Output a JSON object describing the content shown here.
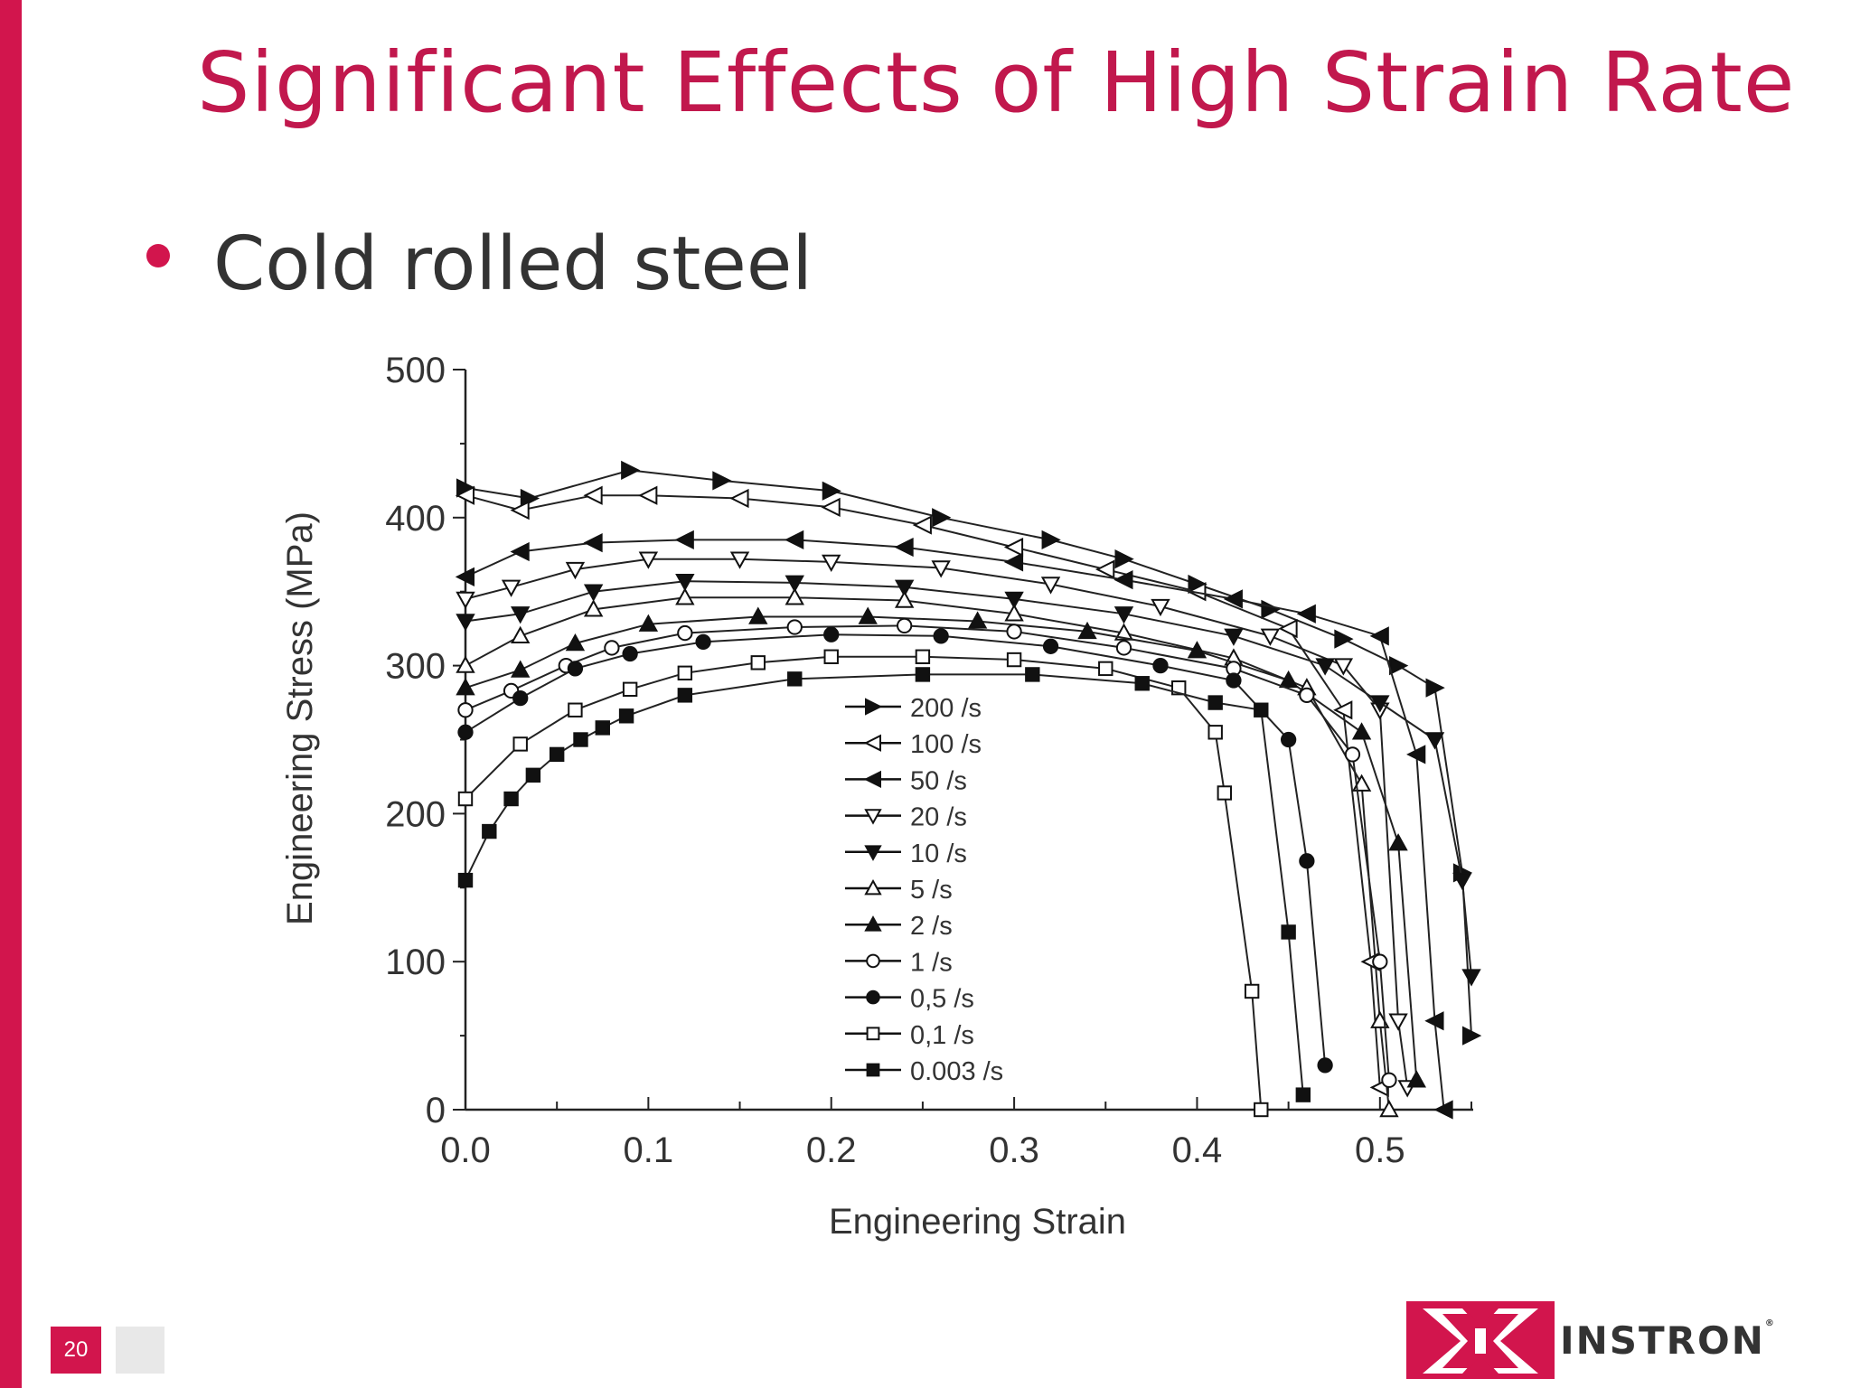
{
  "slide": {
    "title": "Significant Effects of High Strain Rate",
    "bullet": "Cold rolled steel",
    "page_number": "20",
    "logo_text": "INSTRON",
    "logo_reg": "®",
    "accent_color": "#d2154d"
  },
  "chart_data": {
    "type": "line",
    "title": "",
    "xlabel": "Engineering Strain",
    "ylabel": "Engineering Stress (MPa)",
    "xlim": [
      0.0,
      0.55
    ],
    "ylim": [
      0,
      500
    ],
    "x_ticks": [
      "0.0",
      "0.1",
      "0.2",
      "0.3",
      "0.4",
      "0.5"
    ],
    "y_ticks": [
      "0",
      "100",
      "200",
      "300",
      "400",
      "500"
    ],
    "grid": false,
    "legend_position": "center",
    "series": [
      {
        "name": "200 /s",
        "marker": "triangle-right-filled",
        "points": [
          [
            0,
            420
          ],
          [
            0.035,
            413
          ],
          [
            0.09,
            432
          ],
          [
            0.14,
            425
          ],
          [
            0.2,
            418
          ],
          [
            0.26,
            400
          ],
          [
            0.32,
            385
          ],
          [
            0.36,
            372
          ],
          [
            0.4,
            355
          ],
          [
            0.44,
            338
          ],
          [
            0.48,
            318
          ],
          [
            0.51,
            300
          ],
          [
            0.53,
            285
          ],
          [
            0.545,
            160
          ],
          [
            0.55,
            50
          ]
        ]
      },
      {
        "name": "100 /s",
        "marker": "triangle-left-open",
        "points": [
          [
            0,
            415
          ],
          [
            0.03,
            405
          ],
          [
            0.07,
            415
          ],
          [
            0.1,
            415
          ],
          [
            0.15,
            413
          ],
          [
            0.2,
            407
          ],
          [
            0.25,
            395
          ],
          [
            0.3,
            380
          ],
          [
            0.35,
            365
          ],
          [
            0.4,
            350
          ],
          [
            0.45,
            325
          ],
          [
            0.48,
            270
          ],
          [
            0.495,
            100
          ],
          [
            0.5,
            15
          ]
        ]
      },
      {
        "name": "50 /s",
        "marker": "triangle-left-filled",
        "points": [
          [
            0,
            360
          ],
          [
            0.03,
            377
          ],
          [
            0.07,
            383
          ],
          [
            0.12,
            385
          ],
          [
            0.18,
            385
          ],
          [
            0.24,
            380
          ],
          [
            0.3,
            370
          ],
          [
            0.36,
            358
          ],
          [
            0.42,
            345
          ],
          [
            0.46,
            335
          ],
          [
            0.5,
            320
          ],
          [
            0.52,
            240
          ],
          [
            0.53,
            60
          ],
          [
            0.535,
            0
          ]
        ]
      },
      {
        "name": "20 /s",
        "marker": "triangle-down-open",
        "points": [
          [
            0,
            345
          ],
          [
            0.025,
            353
          ],
          [
            0.06,
            365
          ],
          [
            0.1,
            372
          ],
          [
            0.15,
            372
          ],
          [
            0.2,
            370
          ],
          [
            0.26,
            366
          ],
          [
            0.32,
            355
          ],
          [
            0.38,
            340
          ],
          [
            0.44,
            320
          ],
          [
            0.48,
            300
          ],
          [
            0.5,
            270
          ],
          [
            0.51,
            60
          ],
          [
            0.515,
            15
          ]
        ]
      },
      {
        "name": "10 /s",
        "marker": "triangle-down-filled",
        "points": [
          [
            0,
            330
          ],
          [
            0.03,
            335
          ],
          [
            0.07,
            350
          ],
          [
            0.12,
            357
          ],
          [
            0.18,
            356
          ],
          [
            0.24,
            353
          ],
          [
            0.3,
            345
          ],
          [
            0.36,
            335
          ],
          [
            0.42,
            320
          ],
          [
            0.47,
            300
          ],
          [
            0.5,
            275
          ],
          [
            0.53,
            250
          ],
          [
            0.545,
            155
          ],
          [
            0.55,
            90
          ]
        ]
      },
      {
        "name": "5 /s",
        "marker": "triangle-up-open",
        "points": [
          [
            0,
            300
          ],
          [
            0.03,
            320
          ],
          [
            0.07,
            338
          ],
          [
            0.12,
            346
          ],
          [
            0.18,
            346
          ],
          [
            0.24,
            344
          ],
          [
            0.3,
            335
          ],
          [
            0.36,
            322
          ],
          [
            0.42,
            305
          ],
          [
            0.46,
            285
          ],
          [
            0.49,
            220
          ],
          [
            0.5,
            60
          ],
          [
            0.505,
            0
          ]
        ]
      },
      {
        "name": "2 /s",
        "marker": "triangle-up-filled",
        "points": [
          [
            0,
            285
          ],
          [
            0.03,
            297
          ],
          [
            0.06,
            315
          ],
          [
            0.1,
            328
          ],
          [
            0.16,
            333
          ],
          [
            0.22,
            333
          ],
          [
            0.28,
            330
          ],
          [
            0.34,
            323
          ],
          [
            0.4,
            310
          ],
          [
            0.45,
            290
          ],
          [
            0.49,
            255
          ],
          [
            0.51,
            180
          ],
          [
            0.52,
            20
          ]
        ]
      },
      {
        "name": "1 /s",
        "marker": "circle-open",
        "points": [
          [
            0,
            270
          ],
          [
            0.025,
            283
          ],
          [
            0.055,
            300
          ],
          [
            0.08,
            312
          ],
          [
            0.12,
            322
          ],
          [
            0.18,
            326
          ],
          [
            0.24,
            327
          ],
          [
            0.3,
            323
          ],
          [
            0.36,
            312
          ],
          [
            0.42,
            298
          ],
          [
            0.46,
            280
          ],
          [
            0.485,
            240
          ],
          [
            0.5,
            100
          ],
          [
            0.505,
            20
          ]
        ]
      },
      {
        "name": "0,5 /s",
        "marker": "circle-filled",
        "points": [
          [
            0,
            255
          ],
          [
            0.03,
            278
          ],
          [
            0.06,
            298
          ],
          [
            0.09,
            308
          ],
          [
            0.13,
            316
          ],
          [
            0.2,
            321
          ],
          [
            0.26,
            320
          ],
          [
            0.32,
            313
          ],
          [
            0.38,
            300
          ],
          [
            0.42,
            290
          ],
          [
            0.45,
            250
          ],
          [
            0.46,
            168
          ],
          [
            0.47,
            30
          ]
        ]
      },
      {
        "name": "0,1 /s",
        "marker": "square-open",
        "points": [
          [
            0,
            210
          ],
          [
            0.03,
            247
          ],
          [
            0.06,
            270
          ],
          [
            0.09,
            284
          ],
          [
            0.12,
            295
          ],
          [
            0.16,
            302
          ],
          [
            0.2,
            306
          ],
          [
            0.25,
            306
          ],
          [
            0.3,
            304
          ],
          [
            0.35,
            298
          ],
          [
            0.39,
            285
          ],
          [
            0.41,
            255
          ],
          [
            0.415,
            214
          ],
          [
            0.43,
            80
          ],
          [
            0.435,
            0
          ]
        ]
      },
      {
        "name": "0.003 /s",
        "marker": "square-filled",
        "points": [
          [
            0,
            155
          ],
          [
            0.013,
            188
          ],
          [
            0.025,
            210
          ],
          [
            0.037,
            226
          ],
          [
            0.05,
            240
          ],
          [
            0.063,
            250
          ],
          [
            0.075,
            258
          ],
          [
            0.088,
            266
          ],
          [
            0.12,
            280
          ],
          [
            0.18,
            291
          ],
          [
            0.25,
            294
          ],
          [
            0.31,
            294
          ],
          [
            0.37,
            288
          ],
          [
            0.41,
            275
          ],
          [
            0.435,
            270
          ],
          [
            0.45,
            120
          ],
          [
            0.458,
            10
          ]
        ]
      }
    ]
  }
}
